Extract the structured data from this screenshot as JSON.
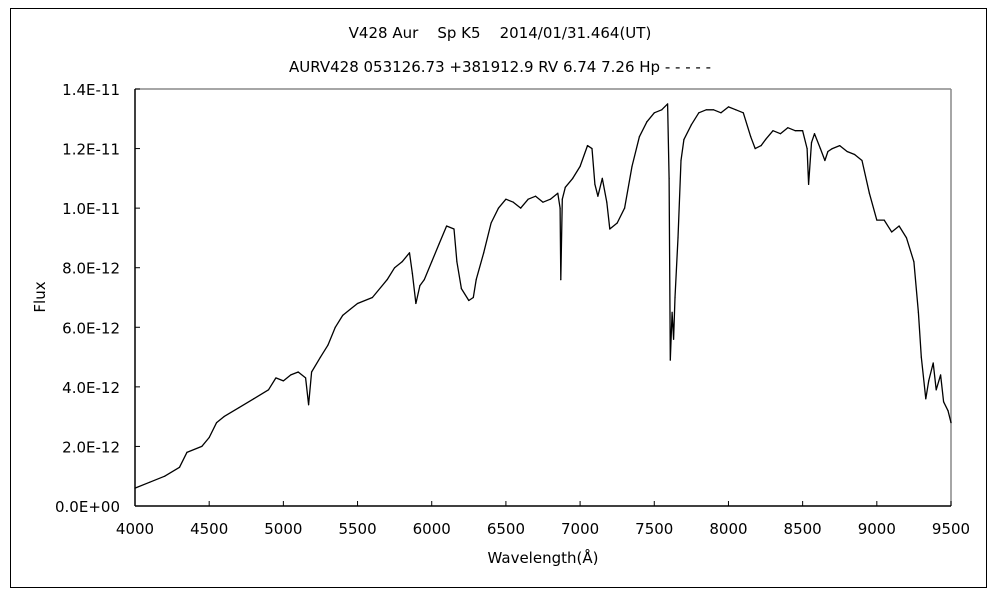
{
  "chart_data": {
    "type": "line",
    "title": "V428 Aur    Sp K5    2014/01/31.464(UT)",
    "subtitle": "AURV428 053126.73 +381912.9 RV 6.74 7.26 Hp - - - - -",
    "xlabel": "Wavelength(Å)",
    "ylabel": "Flux",
    "xlim": [
      4000,
      9500
    ],
    "ylim": [
      0,
      1.4e-11
    ],
    "x_ticks": [
      "4000",
      "4500",
      "5000",
      "5500",
      "6000",
      "6500",
      "7000",
      "7500",
      "8000",
      "8500",
      "9000",
      "9500"
    ],
    "y_ticks": [
      "0.0E+00",
      "2.0E-12",
      "4.0E-12",
      "6.0E-12",
      "8.0E-12",
      "1.0E-11",
      "1.2E-11",
      "1.4E-11"
    ],
    "grid": false,
    "line_color": "#000000",
    "series": [
      {
        "x": [
          4000,
          4100,
          4200,
          4300,
          4350,
          4450,
          4500,
          4550,
          4600,
          4700,
          4800,
          4900,
          4950,
          5000,
          5050,
          5100,
          5150,
          5170,
          5190,
          5250,
          5300,
          5350,
          5400,
          5450,
          5500,
          5600,
          5700,
          5750,
          5800,
          5850,
          5870,
          5893,
          5920,
          5950,
          6000,
          6050,
          6100,
          6150,
          6170,
          6200,
          6250,
          6280,
          6300,
          6350,
          6400,
          6450,
          6500,
          6550,
          6600,
          6650,
          6700,
          6750,
          6800,
          6850,
          6865,
          6870,
          6880,
          6900,
          6950,
          7000,
          7050,
          7080,
          7100,
          7120,
          7150,
          7180,
          7200,
          7250,
          7300,
          7350,
          7400,
          7450,
          7500,
          7550,
          7590,
          7600,
          7608,
          7620,
          7630,
          7640,
          7660,
          7680,
          7700,
          7750,
          7800,
          7850,
          7900,
          7950,
          8000,
          8050,
          8100,
          8150,
          8180,
          8220,
          8250,
          8300,
          8350,
          8400,
          8450,
          8500,
          8530,
          8540,
          8560,
          8580,
          8620,
          8650,
          8670,
          8700,
          8750,
          8800,
          8850,
          8900,
          8950,
          9000,
          9050,
          9100,
          9150,
          9200,
          9250,
          9280,
          9300,
          9330,
          9350,
          9380,
          9400,
          9430,
          9450,
          9480,
          9500
        ],
        "y": [
          6e-13,
          8e-13,
          1e-12,
          1.3e-12,
          1.8e-12,
          2e-12,
          2.3e-12,
          2.8e-12,
          3e-12,
          3.3e-12,
          3.6e-12,
          3.9e-12,
          4.3e-12,
          4.2e-12,
          4.4e-12,
          4.5e-12,
          4.3e-12,
          3.4e-12,
          4.5e-12,
          5e-12,
          5.4e-12,
          6e-12,
          6.4e-12,
          6.6e-12,
          6.8e-12,
          7e-12,
          7.6e-12,
          8e-12,
          8.2e-12,
          8.5e-12,
          7.8e-12,
          6.8e-12,
          7.4e-12,
          7.6e-12,
          8.2e-12,
          8.8e-12,
          9.4e-12,
          9.3e-12,
          8.2e-12,
          7.3e-12,
          6.9e-12,
          7e-12,
          7.6e-12,
          8.5e-12,
          9.5e-12,
          1e-11,
          1.03e-11,
          1.02e-11,
          1e-11,
          1.03e-11,
          1.04e-11,
          1.02e-11,
          1.03e-11,
          1.05e-11,
          1e-11,
          7.6e-12,
          1.03e-11,
          1.07e-11,
          1.1e-11,
          1.14e-11,
          1.21e-11,
          1.2e-11,
          1.08e-11,
          1.04e-11,
          1.1e-11,
          1.02e-11,
          9.3e-12,
          9.5e-12,
          1e-11,
          1.14e-11,
          1.24e-11,
          1.29e-11,
          1.32e-11,
          1.33e-11,
          1.35e-11,
          1.1e-11,
          4.9e-12,
          6.5e-12,
          5.6e-12,
          7e-12,
          9e-12,
          1.16e-11,
          1.23e-11,
          1.28e-11,
          1.32e-11,
          1.33e-11,
          1.33e-11,
          1.32e-11,
          1.34e-11,
          1.33e-11,
          1.32e-11,
          1.24e-11,
          1.2e-11,
          1.21e-11,
          1.23e-11,
          1.26e-11,
          1.25e-11,
          1.27e-11,
          1.26e-11,
          1.26e-11,
          1.2e-11,
          1.08e-11,
          1.22e-11,
          1.25e-11,
          1.2e-11,
          1.16e-11,
          1.19e-11,
          1.2e-11,
          1.21e-11,
          1.19e-11,
          1.18e-11,
          1.16e-11,
          1.05e-11,
          9.6e-12,
          9.6e-12,
          9.2e-12,
          9.4e-12,
          9e-12,
          8.2e-12,
          6.5e-12,
          5e-12,
          3.6e-12,
          4.2e-12,
          4.8e-12,
          3.9e-12,
          4.4e-12,
          3.5e-12,
          3.2e-12,
          2.8e-12
        ]
      }
    ]
  }
}
